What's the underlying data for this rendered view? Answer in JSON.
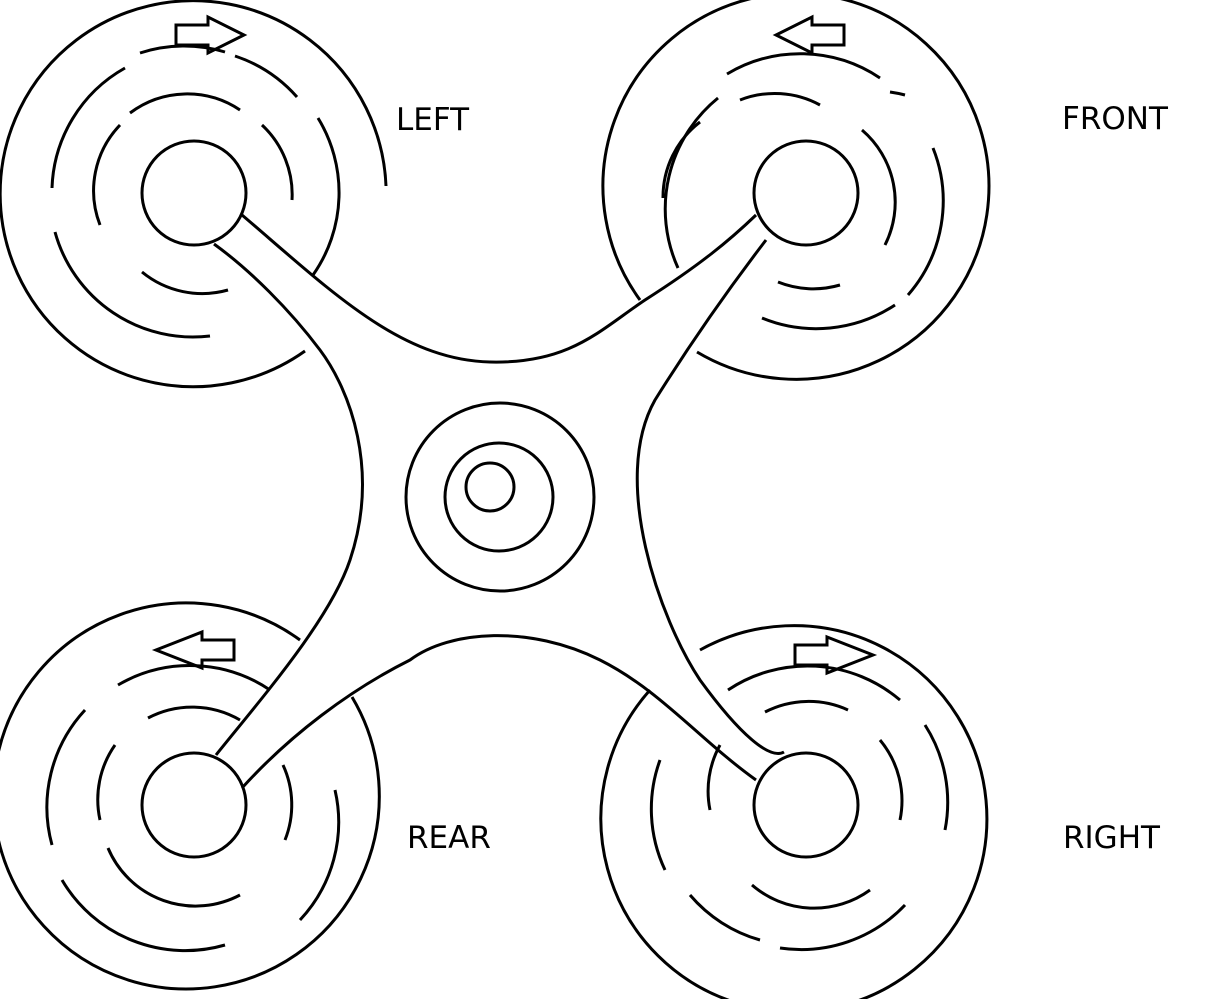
{
  "diagram": {
    "labels": {
      "left": "LEFT",
      "front": "FRONT",
      "rear": "REAR",
      "right": "RIGHT"
    },
    "rotors": [
      {
        "position": "left",
        "spin_arrow": "right"
      },
      {
        "position": "front",
        "spin_arrow": "left"
      },
      {
        "position": "rear",
        "spin_arrow": "left"
      },
      {
        "position": "right",
        "spin_arrow": "right"
      }
    ],
    "colors": {
      "stroke": "#000000",
      "background": "#ffffff"
    }
  }
}
